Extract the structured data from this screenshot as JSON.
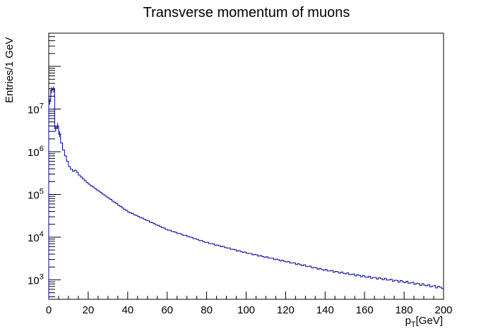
{
  "chart_data": {
    "type": "histogram",
    "title": "Transverse momentum of muons",
    "xlabel_main": "p",
    "xlabel_sub": "T",
    "xlabel_unit": "[GeV]",
    "ylabel": "Entries/1 GeV",
    "xlim": [
      0,
      200
    ],
    "ylim": [
      350,
      600000000
    ],
    "y_scale": "log",
    "bin_width": 1,
    "grid": false,
    "x_ticks": [
      "0",
      "20",
      "40",
      "60",
      "80",
      "100",
      "120",
      "140",
      "160",
      "180",
      "200"
    ],
    "y_tick_labels": [
      {
        "base": "10",
        "exp": "3",
        "value": 1000
      },
      {
        "base": "10",
        "exp": "4",
        "value": 10000
      },
      {
        "base": "10",
        "exp": "5",
        "value": 100000
      },
      {
        "base": "10",
        "exp": "6",
        "value": 1000000
      },
      {
        "base": "10",
        "exp": "7",
        "value": 10000000
      }
    ],
    "line_color": "#000099",
    "bins_leading": [
      15000000.0,
      28000000.0,
      29000000.0,
      3500000.0,
      4000000.0,
      2600000.0,
      1600000.0,
      1100000.0,
      800000.0,
      600000.0,
      450000.0,
      390000.0,
      350000.0,
      370000.0,
      330000.0
    ],
    "bins_tail_fit": {
      "anchors": [
        [
          15,
          300000.0
        ],
        [
          20,
          180000.0
        ],
        [
          40,
          40000.0
        ],
        [
          60,
          15000.0
        ],
        [
          80,
          7500.0
        ],
        [
          100,
          4300.0
        ],
        [
          120,
          2700.0
        ],
        [
          140,
          1700.0
        ],
        [
          160,
          1200.0
        ],
        [
          180,
          900
        ],
        [
          200,
          650
        ]
      ]
    }
  }
}
